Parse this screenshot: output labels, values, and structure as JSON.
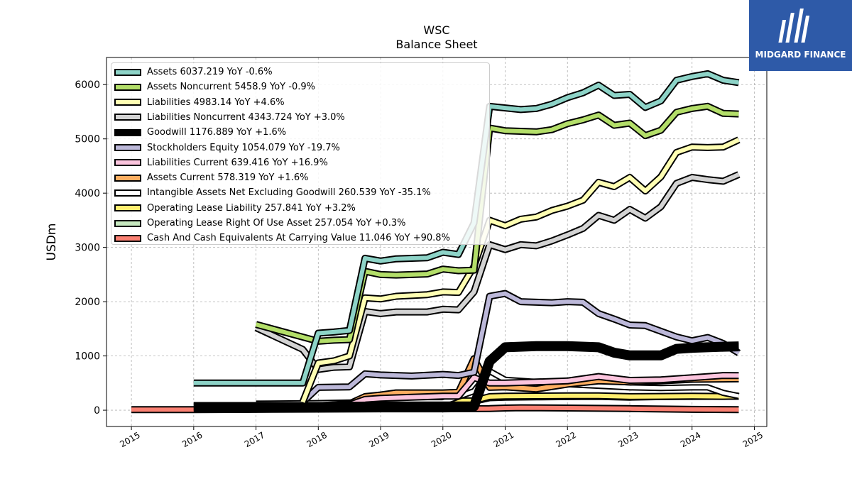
{
  "chart_data": {
    "type": "line",
    "title": "WSC",
    "subtitle": "Balance  Sheet",
    "ylabel": "USDm",
    "xlabel": "",
    "xlim": [
      2014.6,
      2025.2
    ],
    "ylim": [
      -300,
      6500
    ],
    "x_ticks": [
      "2015",
      "2016",
      "2017",
      "2018",
      "2019",
      "2020",
      "2021",
      "2022",
      "2023",
      "2024",
      "2025"
    ],
    "y_ticks": [
      "0",
      "1000",
      "2000",
      "3000",
      "4000",
      "5000",
      "6000"
    ],
    "grid": true,
    "legend_placement": "top-left",
    "series": [
      {
        "name": "Cash And Cash Equivalents At Carrying Value  11.046 YoY +90.8%",
        "color": "#fa8072",
        "width": 6,
        "points": [
          [
            2015.0,
            10
          ],
          [
            2016.0,
            10
          ],
          [
            2017.0,
            15
          ],
          [
            2018.0,
            20
          ],
          [
            2019.0,
            25
          ],
          [
            2020.0,
            25
          ],
          [
            2020.75,
            30
          ],
          [
            2021.0,
            40
          ],
          [
            2021.25,
            45
          ],
          [
            2022.0,
            40
          ],
          [
            2023.0,
            30
          ],
          [
            2024.0,
            15
          ],
          [
            2024.75,
            11
          ]
        ]
      },
      {
        "name": "Operating Lease Right Of Use Asset  257.054 YoY +0.3%",
        "color": "#c7e9c0",
        "width": 6,
        "points": [
          [
            2019.0,
            150
          ],
          [
            2020.0,
            160
          ],
          [
            2020.5,
            165
          ],
          [
            2020.75,
            230
          ],
          [
            2021.0,
            240
          ],
          [
            2021.5,
            245
          ],
          [
            2022.0,
            250
          ],
          [
            2022.5,
            255
          ],
          [
            2023.0,
            240
          ],
          [
            2023.5,
            250
          ],
          [
            2024.0,
            255
          ],
          [
            2024.5,
            256
          ],
          [
            2024.75,
            257
          ]
        ]
      },
      {
        "name": "Operating Lease Liability  257.841 YoY +3.2%",
        "color": "#ffed6f",
        "width": 6,
        "points": [
          [
            2019.0,
            160
          ],
          [
            2020.0,
            170
          ],
          [
            2020.5,
            175
          ],
          [
            2020.75,
            250
          ],
          [
            2021.0,
            260
          ],
          [
            2021.5,
            262
          ],
          [
            2022.0,
            265
          ],
          [
            2022.5,
            265
          ],
          [
            2023.0,
            250
          ],
          [
            2023.5,
            255
          ],
          [
            2024.0,
            258
          ],
          [
            2024.5,
            255
          ],
          [
            2024.75,
            258
          ]
        ]
      },
      {
        "name": "Intangible Assets Net Excluding Goodwill  260.539 YoY -35.1%",
        "color": "#ffffff",
        "width": 5,
        "points": [
          [
            2017.0,
            120
          ],
          [
            2018.0,
            130
          ],
          [
            2019.0,
            150
          ],
          [
            2020.0,
            150
          ],
          [
            2020.5,
            350
          ],
          [
            2020.75,
            720
          ],
          [
            2021.0,
            560
          ],
          [
            2021.5,
            520
          ],
          [
            2022.0,
            480
          ],
          [
            2022.5,
            450
          ],
          [
            2023.0,
            420
          ],
          [
            2023.5,
            410
          ],
          [
            2024.0,
            420
          ],
          [
            2024.25,
            420
          ],
          [
            2024.5,
            320
          ],
          [
            2024.75,
            261
          ]
        ]
      },
      {
        "name": "Assets Current  578.319 YoY +1.6%",
        "color": "#fdae61",
        "width": 6,
        "points": [
          [
            2017.75,
            60
          ],
          [
            2018.5,
            120
          ],
          [
            2018.75,
            250
          ],
          [
            2019.0,
            280
          ],
          [
            2019.25,
            320
          ],
          [
            2020.0,
            320
          ],
          [
            2020.25,
            330
          ],
          [
            2020.5,
            950
          ],
          [
            2020.75,
            420
          ],
          [
            2021.0,
            430
          ],
          [
            2021.5,
            390
          ],
          [
            2022.0,
            480
          ],
          [
            2022.5,
            540
          ],
          [
            2023.0,
            520
          ],
          [
            2023.5,
            540
          ],
          [
            2024.0,
            570
          ],
          [
            2024.5,
            575
          ],
          [
            2024.75,
            578
          ]
        ]
      },
      {
        "name": "Liabilities Current  639.416 YoY +16.9%",
        "color": "#fcc5de",
        "width": 6,
        "points": [
          [
            2017.75,
            50
          ],
          [
            2018.5,
            100
          ],
          [
            2018.75,
            200
          ],
          [
            2019.0,
            220
          ],
          [
            2019.5,
            240
          ],
          [
            2020.0,
            260
          ],
          [
            2020.25,
            260
          ],
          [
            2020.5,
            600
          ],
          [
            2020.75,
            500
          ],
          [
            2021.0,
            500
          ],
          [
            2021.5,
            520
          ],
          [
            2022.0,
            540
          ],
          [
            2022.5,
            620
          ],
          [
            2023.0,
            550
          ],
          [
            2023.5,
            560
          ],
          [
            2024.0,
            600
          ],
          [
            2024.5,
            640
          ],
          [
            2024.75,
            639
          ]
        ]
      },
      {
        "name": "Stockholders Equity  1054.079 YoY -19.7%",
        "color": "#bcb8d9",
        "width": 6,
        "points": [
          [
            2017.75,
            150
          ],
          [
            2018.0,
            420
          ],
          [
            2018.5,
            430
          ],
          [
            2018.75,
            670
          ],
          [
            2019.0,
            650
          ],
          [
            2019.5,
            630
          ],
          [
            2020.0,
            660
          ],
          [
            2020.25,
            640
          ],
          [
            2020.5,
            700
          ],
          [
            2020.75,
            2100
          ],
          [
            2021.0,
            2150
          ],
          [
            2021.25,
            2000
          ],
          [
            2021.75,
            1980
          ],
          [
            2022.0,
            2000
          ],
          [
            2022.25,
            1990
          ],
          [
            2022.5,
            1780
          ],
          [
            2022.75,
            1680
          ],
          [
            2023.0,
            1570
          ],
          [
            2023.25,
            1560
          ],
          [
            2023.75,
            1350
          ],
          [
            2024.0,
            1280
          ],
          [
            2024.25,
            1340
          ],
          [
            2024.5,
            1230
          ],
          [
            2024.75,
            1054
          ]
        ]
      },
      {
        "name": "Goodwill  1176.889 YoY +1.6%",
        "color": "#000000",
        "width": 10,
        "points": [
          [
            2016.0,
            60
          ],
          [
            2017.0,
            60
          ],
          [
            2018.0,
            60
          ],
          [
            2019.0,
            70
          ],
          [
            2020.0,
            70
          ],
          [
            2020.5,
            70
          ],
          [
            2020.75,
            900
          ],
          [
            2021.0,
            1160
          ],
          [
            2021.5,
            1180
          ],
          [
            2022.0,
            1180
          ],
          [
            2022.5,
            1160
          ],
          [
            2022.75,
            1060
          ],
          [
            2023.0,
            1010
          ],
          [
            2023.5,
            1010
          ],
          [
            2023.75,
            1130
          ],
          [
            2024.0,
            1150
          ],
          [
            2024.5,
            1170
          ],
          [
            2024.75,
            1177
          ]
        ]
      },
      {
        "name": "Liabilities Noncurrent  4343.724 YoY +3.0%",
        "color": "#d3d3d3",
        "width": 6,
        "points": [
          [
            2017.0,
            1520
          ],
          [
            2017.75,
            1120
          ],
          [
            2018.0,
            750
          ],
          [
            2018.25,
            790
          ],
          [
            2018.5,
            800
          ],
          [
            2018.75,
            1820
          ],
          [
            2019.0,
            1780
          ],
          [
            2019.25,
            1810
          ],
          [
            2019.75,
            1810
          ],
          [
            2020.0,
            1860
          ],
          [
            2020.25,
            1850
          ],
          [
            2020.5,
            2180
          ],
          [
            2020.75,
            3050
          ],
          [
            2021.0,
            2960
          ],
          [
            2021.25,
            3050
          ],
          [
            2021.5,
            3030
          ],
          [
            2021.75,
            3120
          ],
          [
            2022.0,
            3230
          ],
          [
            2022.25,
            3350
          ],
          [
            2022.5,
            3590
          ],
          [
            2022.75,
            3500
          ],
          [
            2023.0,
            3700
          ],
          [
            2023.25,
            3540
          ],
          [
            2023.5,
            3750
          ],
          [
            2023.75,
            4180
          ],
          [
            2024.0,
            4290
          ],
          [
            2024.25,
            4250
          ],
          [
            2024.5,
            4220
          ],
          [
            2024.75,
            4344
          ]
        ]
      },
      {
        "name": "Liabilities  4983.14 YoY +4.6%",
        "color": "#ffffb3",
        "width": 6,
        "points": [
          [
            2017.75,
            150
          ],
          [
            2018.0,
            870
          ],
          [
            2018.25,
            910
          ],
          [
            2018.5,
            1000
          ],
          [
            2018.75,
            2070
          ],
          [
            2019.0,
            2050
          ],
          [
            2019.25,
            2100
          ],
          [
            2019.75,
            2130
          ],
          [
            2020.0,
            2180
          ],
          [
            2020.25,
            2170
          ],
          [
            2020.5,
            2650
          ],
          [
            2020.75,
            3500
          ],
          [
            2021.0,
            3400
          ],
          [
            2021.25,
            3520
          ],
          [
            2021.5,
            3560
          ],
          [
            2021.75,
            3680
          ],
          [
            2022.0,
            3760
          ],
          [
            2022.25,
            3870
          ],
          [
            2022.5,
            4200
          ],
          [
            2022.75,
            4120
          ],
          [
            2023.0,
            4290
          ],
          [
            2023.25,
            4040
          ],
          [
            2023.5,
            4300
          ],
          [
            2023.75,
            4750
          ],
          [
            2024.0,
            4850
          ],
          [
            2024.25,
            4840
          ],
          [
            2024.5,
            4850
          ],
          [
            2024.75,
            4983
          ]
        ]
      },
      {
        "name": "Assets Noncurrent  5458.9 YoY -0.9%",
        "color": "#b3de69",
        "width": 6,
        "points": [
          [
            2017.0,
            1580
          ],
          [
            2018.0,
            1270
          ],
          [
            2018.25,
            1290
          ],
          [
            2018.5,
            1300
          ],
          [
            2018.75,
            2560
          ],
          [
            2019.0,
            2500
          ],
          [
            2019.25,
            2490
          ],
          [
            2019.75,
            2510
          ],
          [
            2020.0,
            2600
          ],
          [
            2020.25,
            2570
          ],
          [
            2020.5,
            2580
          ],
          [
            2020.75,
            5200
          ],
          [
            2021.0,
            5150
          ],
          [
            2021.5,
            5130
          ],
          [
            2021.75,
            5170
          ],
          [
            2022.0,
            5280
          ],
          [
            2022.25,
            5350
          ],
          [
            2022.5,
            5440
          ],
          [
            2022.75,
            5250
          ],
          [
            2023.0,
            5290
          ],
          [
            2023.25,
            5060
          ],
          [
            2023.5,
            5160
          ],
          [
            2023.75,
            5490
          ],
          [
            2024.0,
            5560
          ],
          [
            2024.25,
            5600
          ],
          [
            2024.5,
            5470
          ],
          [
            2024.75,
            5459
          ]
        ]
      },
      {
        "name": "Assets  6037.219 YoY -0.6%",
        "color": "#8dd3c7",
        "width": 6,
        "points": [
          [
            2016.0,
            500
          ],
          [
            2017.0,
            500
          ],
          [
            2017.75,
            500
          ],
          [
            2018.0,
            1420
          ],
          [
            2018.25,
            1440
          ],
          [
            2018.5,
            1470
          ],
          [
            2018.75,
            2800
          ],
          [
            2019.0,
            2750
          ],
          [
            2019.25,
            2790
          ],
          [
            2019.75,
            2810
          ],
          [
            2020.0,
            2910
          ],
          [
            2020.25,
            2870
          ],
          [
            2020.5,
            3450
          ],
          [
            2020.75,
            5600
          ],
          [
            2021.0,
            5570
          ],
          [
            2021.25,
            5540
          ],
          [
            2021.5,
            5560
          ],
          [
            2021.75,
            5640
          ],
          [
            2022.0,
            5760
          ],
          [
            2022.25,
            5850
          ],
          [
            2022.5,
            5990
          ],
          [
            2022.75,
            5800
          ],
          [
            2023.0,
            5820
          ],
          [
            2023.25,
            5580
          ],
          [
            2023.5,
            5700
          ],
          [
            2023.75,
            6080
          ],
          [
            2024.0,
            6150
          ],
          [
            2024.25,
            6200
          ],
          [
            2024.5,
            6080
          ],
          [
            2024.75,
            6037
          ]
        ]
      }
    ],
    "legend": [
      {
        "label": "Assets  6037.219 YoY -0.6%",
        "color": "#8dd3c7"
      },
      {
        "label": "Assets Noncurrent  5458.9 YoY -0.9%",
        "color": "#b3de69"
      },
      {
        "label": "Liabilities  4983.14 YoY +4.6%",
        "color": "#ffffb3"
      },
      {
        "label": "Liabilities Noncurrent  4343.724 YoY +3.0%",
        "color": "#d3d3d3"
      },
      {
        "label": "Goodwill  1176.889 YoY +1.6%",
        "color": "#000000"
      },
      {
        "label": "Stockholders Equity  1054.079 YoY -19.7%",
        "color": "#bcb8d9"
      },
      {
        "label": "Liabilities Current  639.416 YoY +16.9%",
        "color": "#fcc5de"
      },
      {
        "label": "Assets Current  578.319 YoY +1.6%",
        "color": "#fdae61"
      },
      {
        "label": "Intangible Assets Net Excluding Goodwill  260.539 YoY -35.1%",
        "color": "#ffffff"
      },
      {
        "label": "Operating Lease Liability  257.841 YoY +3.2%",
        "color": "#ffed6f"
      },
      {
        "label": "Operating Lease Right Of Use Asset  257.054 YoY +0.3%",
        "color": "#c7e9c0"
      },
      {
        "label": "Cash And Cash Equivalents At Carrying Value  11.046 YoY +90.8%",
        "color": "#fa8072"
      }
    ]
  },
  "logo": {
    "text": "MIDGARD FINANCE",
    "bg_color": "#2e5aa8"
  }
}
